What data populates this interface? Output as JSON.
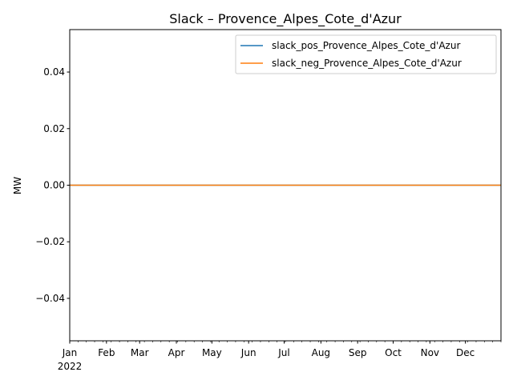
{
  "chart_data": {
    "type": "line",
    "title": "Slack – Provence_Alpes_Cote_d'Azur",
    "xlabel": "",
    "ylabel": "MW",
    "x_range": [
      "2022-01-01",
      "2022-12-31"
    ],
    "ylim": [
      -0.055,
      0.055
    ],
    "y_ticks": [
      -0.04,
      -0.02,
      0.0,
      0.02,
      0.04
    ],
    "y_tick_labels": [
      "−0.04",
      "−0.02",
      "0.00",
      "0.02",
      "0.04"
    ],
    "x_ticks": [
      "2022-01-01",
      "2022-02-01",
      "2022-03-01",
      "2022-04-01",
      "2022-05-01",
      "2022-06-01",
      "2022-07-01",
      "2022-08-01",
      "2022-09-01",
      "2022-10-01",
      "2022-11-01",
      "2022-12-01"
    ],
    "x_tick_labels": [
      "Jan",
      "Feb",
      "Mar",
      "Apr",
      "May",
      "Jun",
      "Jul",
      "Aug",
      "Sep",
      "Oct",
      "Nov",
      "Dec"
    ],
    "x_year_label": "2022",
    "grid": false,
    "legend_position": "top-right",
    "series": [
      {
        "name": "slack_pos_Provence_Alpes_Cote_d'Azur",
        "color": "#1f77b4",
        "x": [
          "2022-01-01",
          "2022-12-31"
        ],
        "values": [
          0.0,
          0.0
        ]
      },
      {
        "name": "slack_neg_Provence_Alpes_Cote_d'Azur",
        "color": "#ff7f0e",
        "x": [
          "2022-01-01",
          "2022-12-31"
        ],
        "values": [
          0.0,
          0.0
        ]
      }
    ]
  }
}
